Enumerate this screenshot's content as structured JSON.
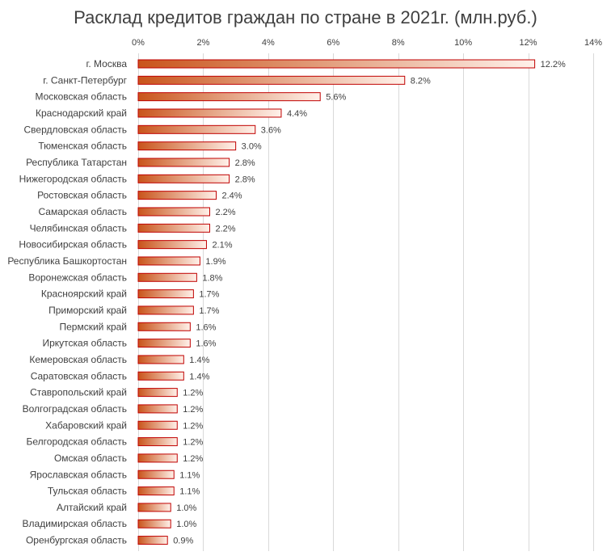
{
  "chart_data": {
    "type": "bar",
    "orientation": "horizontal",
    "title": "Расклад кредитов граждан по стране в 2021г. (млн.руб.)",
    "xlim": [
      0,
      14
    ],
    "xticks": [
      "0%",
      "2%",
      "4%",
      "6%",
      "8%",
      "10%",
      "12%",
      "14%"
    ],
    "xaxis_position": "top",
    "grid": true,
    "categories": [
      "г. Москва",
      "г. Санкт-Петербург",
      "Московская область",
      "Краснодарский край",
      "Свердловская область",
      "Тюменская область",
      "Республика Татарстан",
      "Нижегородская область",
      "Ростовская область",
      "Самарская область",
      "Челябинская область",
      "Новосибирская область",
      "Республика Башкортостан",
      "Воронежская область",
      "Красноярский край",
      "Приморский край",
      "Пермский край",
      "Иркутская область",
      "Кемеровская область",
      "Саратовская область",
      "Ставропольский край",
      "Волгоградская область",
      "Хабаровский край",
      "Белгородская область",
      "Омская область",
      "Ярославская область",
      "Тульская область",
      "Алтайский край",
      "Владимирская область",
      "Оренбургская область"
    ],
    "values": [
      12.2,
      8.2,
      5.6,
      4.4,
      3.6,
      3.0,
      2.8,
      2.8,
      2.4,
      2.2,
      2.2,
      2.1,
      1.9,
      1.8,
      1.7,
      1.7,
      1.6,
      1.6,
      1.4,
      1.4,
      1.2,
      1.2,
      1.2,
      1.2,
      1.2,
      1.1,
      1.1,
      1.0,
      1.0,
      0.9
    ],
    "labels": [
      "12.2%",
      "8.2%",
      "5.6%",
      "4.4%",
      "3.6%",
      "3.0%",
      "2.8%",
      "2.8%",
      "2.4%",
      "2.2%",
      "2.2%",
      "2.1%",
      "1.9%",
      "1.8%",
      "1.7%",
      "1.7%",
      "1.6%",
      "1.6%",
      "1.4%",
      "1.4%",
      "1.2%",
      "1.2%",
      "1.2%",
      "1.2%",
      "1.2%",
      "1.1%",
      "1.1%",
      "1.0%",
      "1.0%",
      "0.9%"
    ],
    "colors": {
      "bar_start": "#c9541b",
      "bar_end": "#fff1ea",
      "bar_border": "#c00000",
      "grid": "#d9d9d9",
      "text": "#404040"
    }
  }
}
